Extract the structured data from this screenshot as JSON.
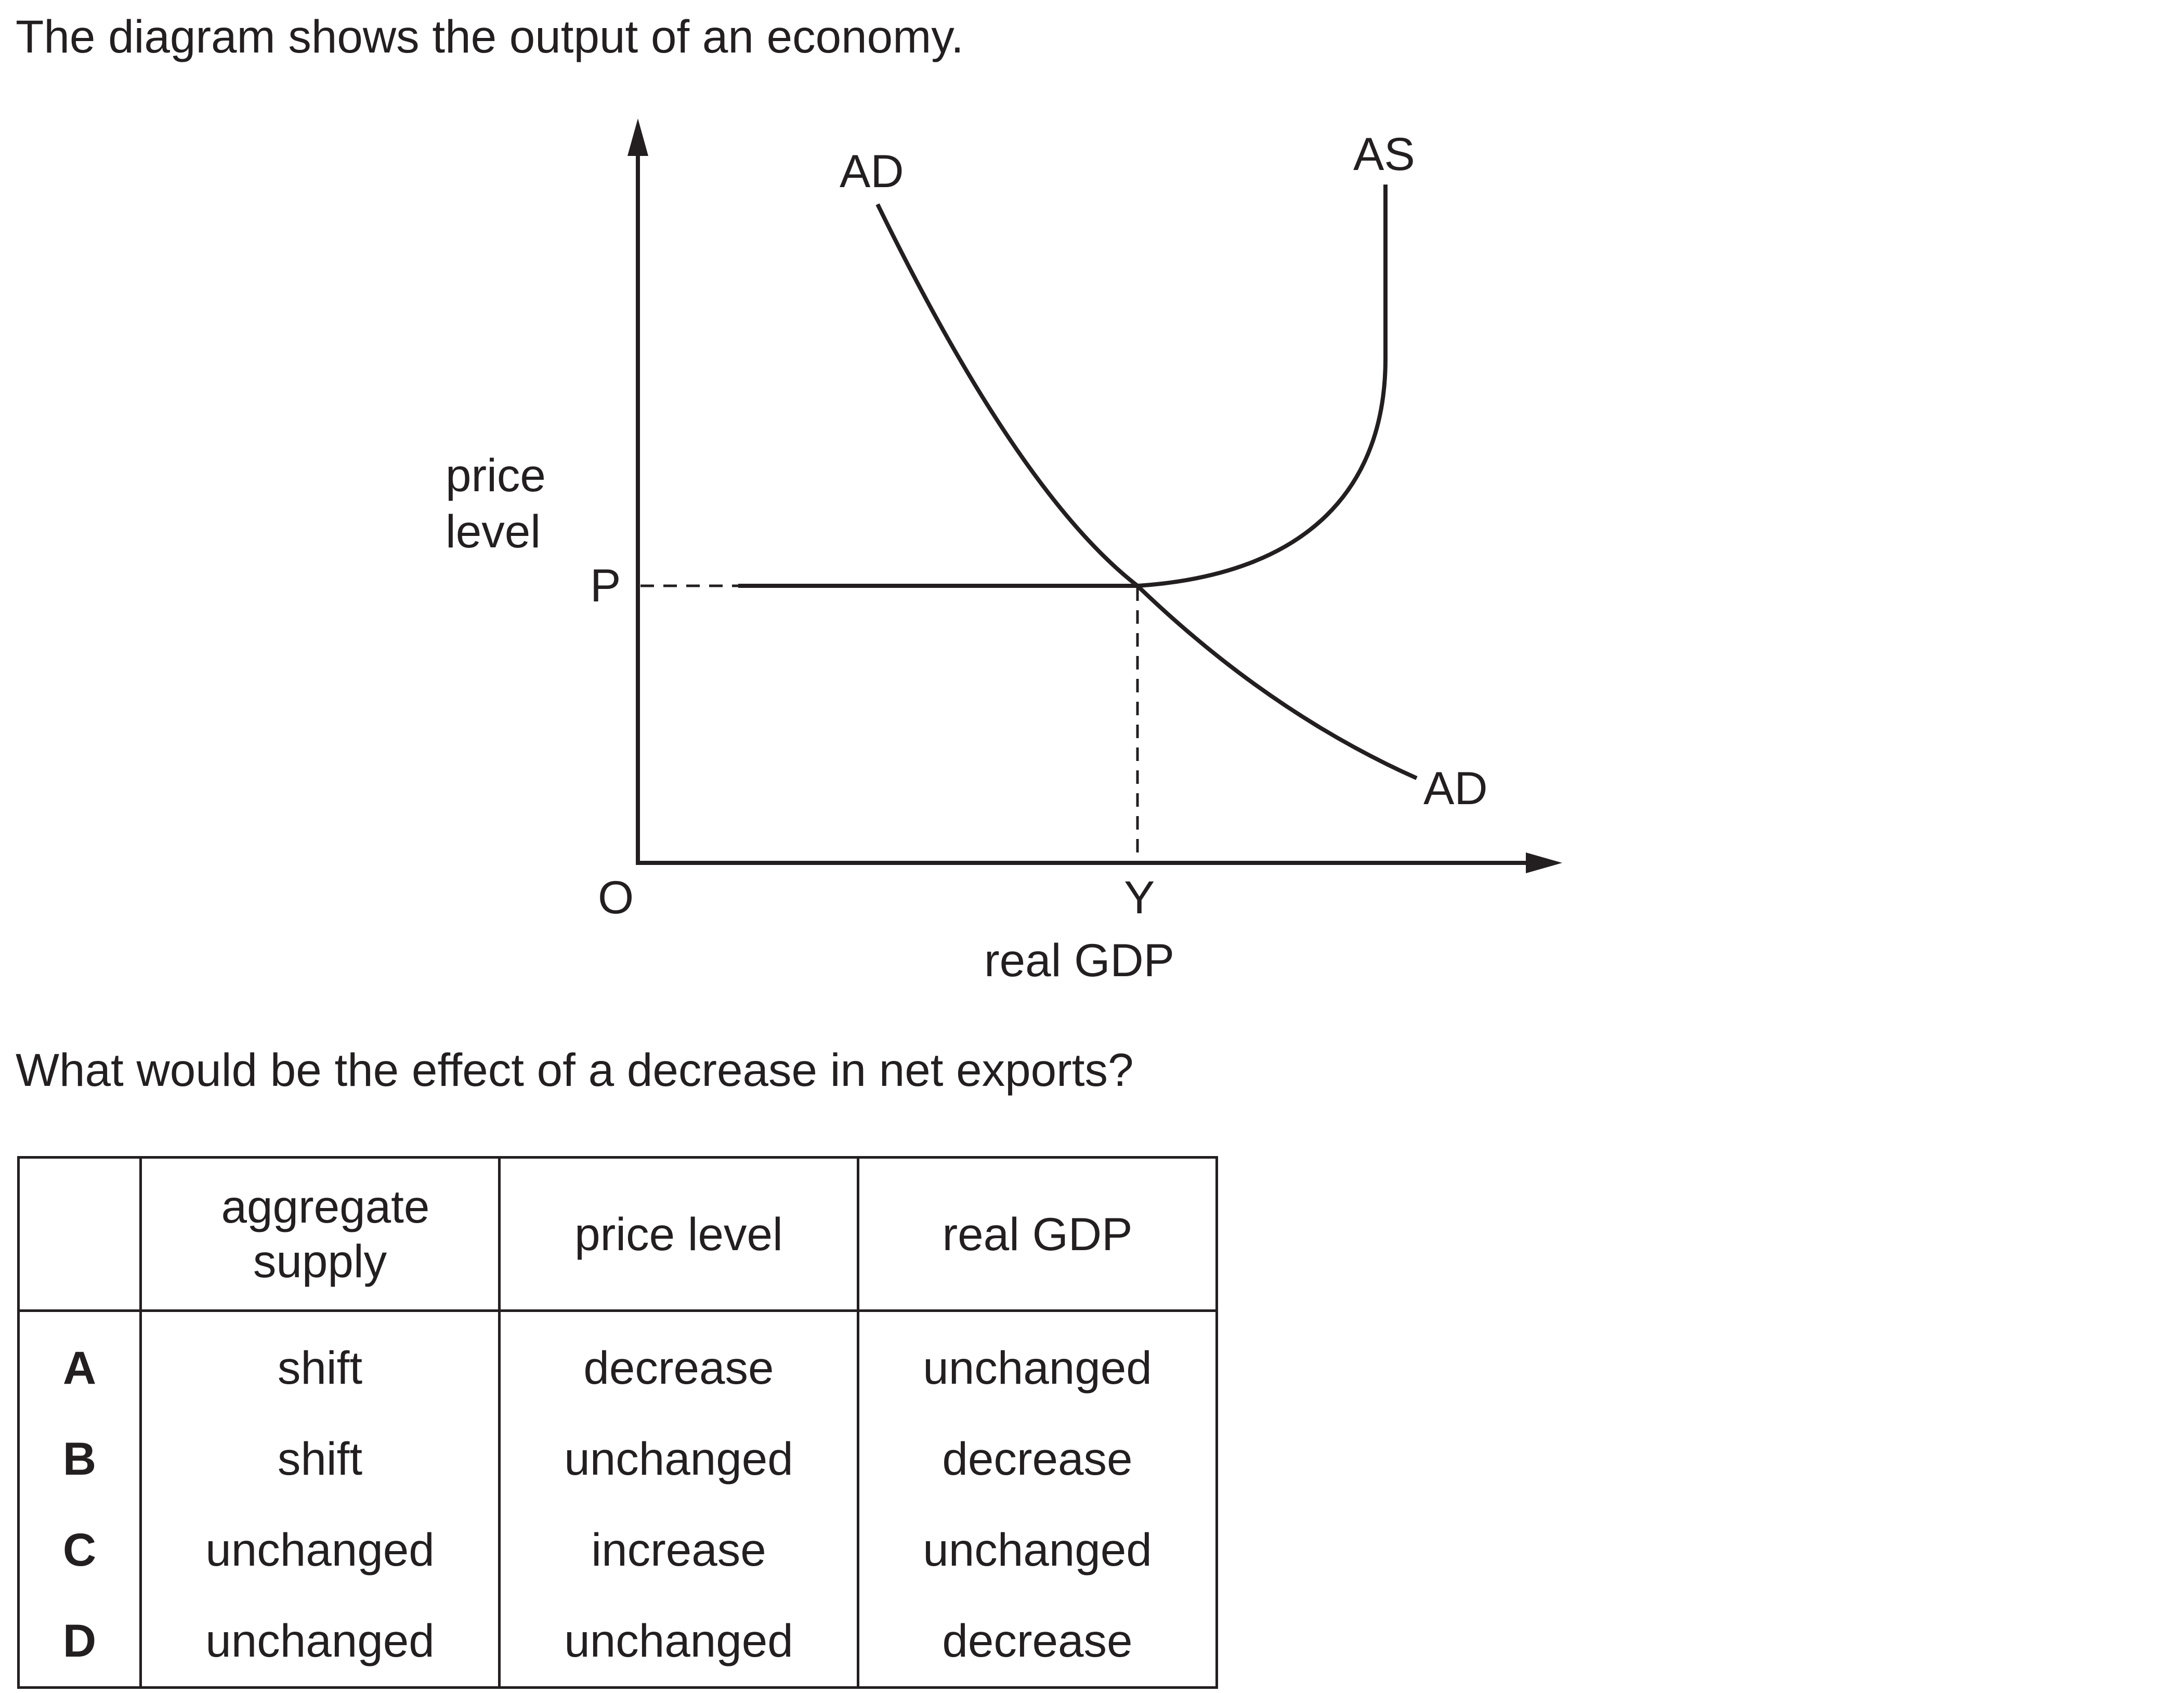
{
  "intro_text": "The diagram shows the output of an economy.",
  "diagram": {
    "y_axis_label_line1": "price",
    "y_axis_label_line2": "level",
    "x_axis_label": "real GDP",
    "origin_label": "O",
    "price_marker": "P",
    "output_marker": "Y",
    "ad_label_top": "AD",
    "ad_label_bottom": "AD",
    "as_label": "AS"
  },
  "question_text": "What would be the effect of a decrease in net exports?",
  "table": {
    "headers": [
      "",
      "aggregate supply",
      "price level",
      "real GDP"
    ],
    "rows": [
      {
        "letter": "A",
        "aggregate_supply": "shift",
        "price_level": "decrease",
        "real_gdp": "unchanged"
      },
      {
        "letter": "B",
        "aggregate_supply": "shift",
        "price_level": "unchanged",
        "real_gdp": "decrease"
      },
      {
        "letter": "C",
        "aggregate_supply": "unchanged",
        "price_level": "increase",
        "real_gdp": "unchanged"
      },
      {
        "letter": "D",
        "aggregate_supply": "unchanged",
        "price_level": "unchanged",
        "real_gdp": "decrease"
      }
    ]
  },
  "colors": {
    "ink": "#231f20",
    "background": "#ffffff"
  }
}
